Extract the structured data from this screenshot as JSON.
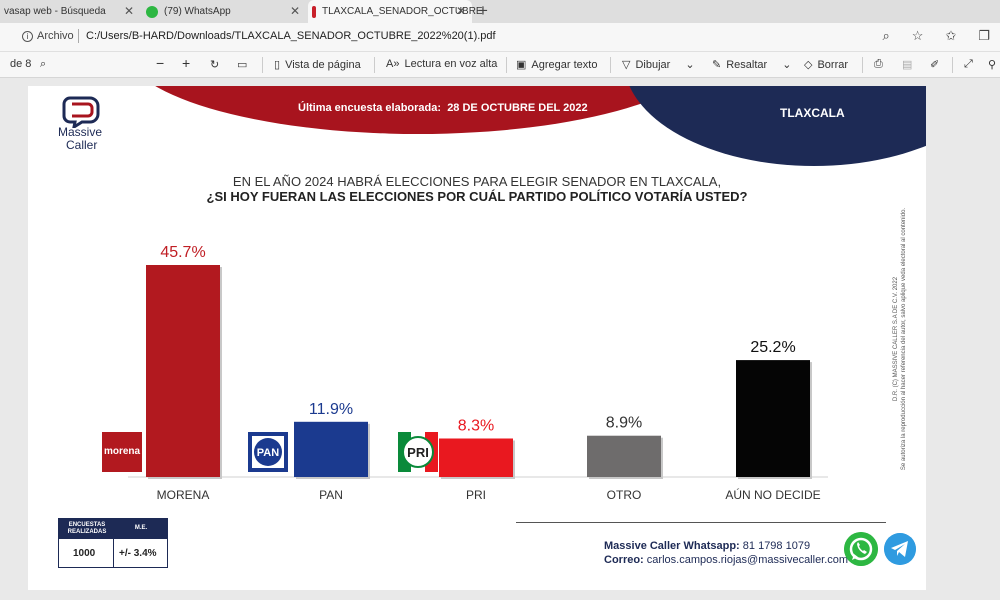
{
  "browser": {
    "tabs": [
      {
        "label": "vasap web - Búsqueda"
      },
      {
        "label": "(79) WhatsApp"
      },
      {
        "label": "TLAXCALA_SENADOR_OCTUBRE"
      }
    ],
    "address": {
      "scheme_label": "Archivo",
      "url": "C:/Users/B-HARD/Downloads/TLAXCALA_SENADOR_OCTUBRE_2022%20(1).pdf"
    }
  },
  "pdf_toolbar": {
    "page_label": "de 8",
    "page_view": "Vista de página",
    "read_aloud": "Lectura en voz alta",
    "add_text": "Agregar texto",
    "draw": "Dibujar",
    "highlight": "Resaltar",
    "erase": "Borrar"
  },
  "colors": {
    "red": "#a8141e",
    "navy": "#1d2a55"
  },
  "page": {
    "logo": {
      "line1": "Massive",
      "line2": "Caller"
    },
    "banner": {
      "label": "Última encuesta elaborada:",
      "date": "28 DE OCTUBRE DEL 2022"
    },
    "region": "TLAXCALA",
    "question_line1": "EN EL AÑO 2024 HABRÁ ELECCIONES PARA ELEGIR SENADOR EN TLAXCALA,",
    "question_line2": "¿SI HOY FUERAN LAS ELECCIONES POR CUÁL PARTIDO POLÍTICO VOTARÍA USTED?",
    "copyright_line1": "D.R. (C) MASSIVE CALLER S.A DE C.V. 2022",
    "copyright_line2": "Se autoriza la reproducción al hacer referencia del autor, salvo aplique veda electoral al contenido.",
    "sample": {
      "header1": "ENCUESTAS REALIZADAS",
      "header2": "M.E.",
      "count": "1000",
      "margin": "+/- 3.4%"
    },
    "contact": {
      "whatsapp_label": "Massive Caller Whatsapp:",
      "whatsapp": "81 1798 1079",
      "email_label": "Correo:",
      "email": "carlos.campos.riojas@massivecaller.com"
    }
  },
  "chart_data": {
    "type": "bar",
    "categories": [
      "MORENA",
      "PAN",
      "PRI",
      "OTRO",
      "AÚN NO DECIDE"
    ],
    "values": [
      45.7,
      11.9,
      8.3,
      8.9,
      25.2
    ],
    "labels": [
      "45.7%",
      "11.9%",
      "8.3%",
      "8.9%",
      "25.2%"
    ],
    "bar_colors": [
      "#b2191f",
      "#1b3a8f",
      "#e9181f",
      "#6e6c6c",
      "#050505"
    ],
    "label_colors": [
      "#c01e24",
      "#1b3a8f",
      "#e9181f",
      "#333333",
      "#111111"
    ],
    "party_logos": [
      "morena",
      "PAN",
      "PRI",
      "",
      ""
    ],
    "ylim": [
      0,
      50
    ]
  }
}
